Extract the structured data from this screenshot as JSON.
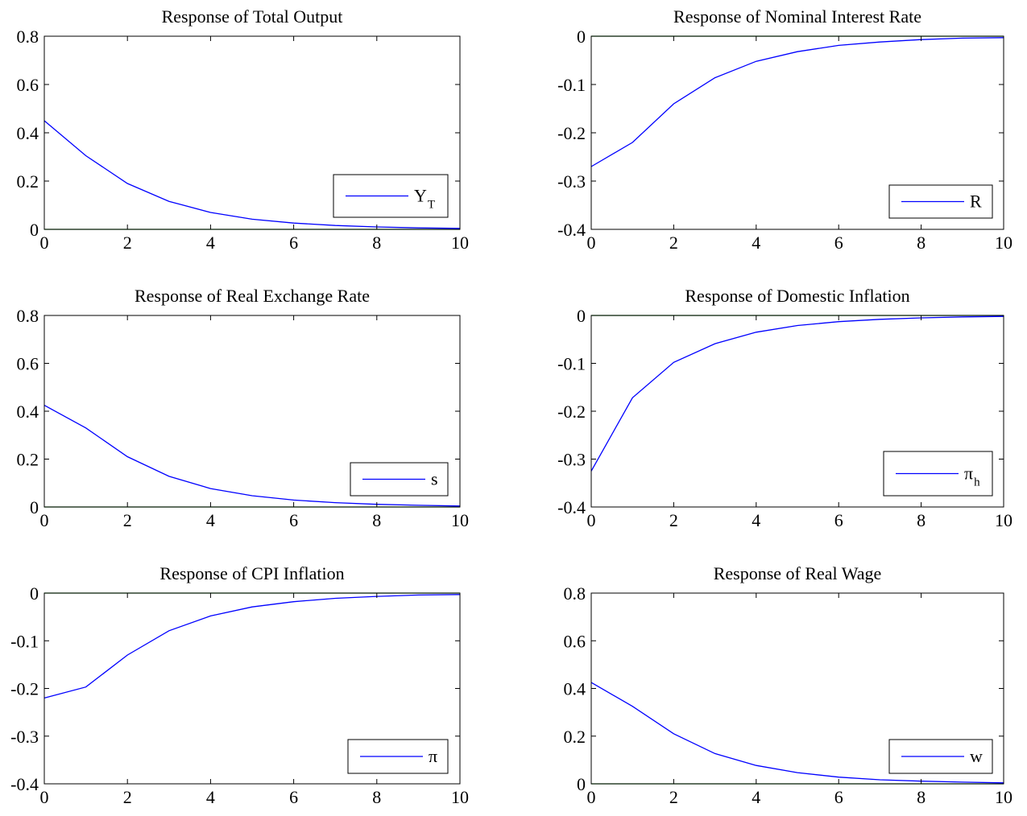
{
  "colors": {
    "series": "#0000ff",
    "zero_line": "#007f00",
    "axes": "#000000",
    "background": "#ffffff"
  },
  "chart_data": [
    {
      "type": "line",
      "title": "Response of Total Output",
      "x": [
        0,
        1,
        2,
        3,
        4,
        5,
        6,
        7,
        8,
        9,
        10
      ],
      "xlim": [
        0,
        10
      ],
      "ylim": [
        0,
        0.8
      ],
      "xticks": [
        0,
        2,
        4,
        6,
        8,
        10
      ],
      "xtick_labels": [
        "0",
        "2",
        "4",
        "6",
        "8",
        "10"
      ],
      "yticks": [
        0,
        0.2,
        0.4,
        0.6,
        0.8
      ],
      "ytick_labels": [
        "0",
        "0.2",
        "0.4",
        "0.6",
        "0.8"
      ],
      "zero_line": true,
      "grid": false,
      "legend_position": "bottom-right",
      "series": [
        {
          "name": "Y",
          "name_subscript": "T",
          "values": [
            0.45,
            0.305,
            0.19,
            0.116,
            0.07,
            0.042,
            0.026,
            0.016,
            0.01,
            0.006,
            0.004
          ]
        }
      ]
    },
    {
      "type": "line",
      "title": "Response of Nominal Interest Rate",
      "x": [
        0,
        1,
        2,
        3,
        4,
        5,
        6,
        7,
        8,
        9,
        10
      ],
      "xlim": [
        0,
        10
      ],
      "ylim": [
        -0.4,
        0
      ],
      "xticks": [
        0,
        2,
        4,
        6,
        8,
        10
      ],
      "xtick_labels": [
        "0",
        "2",
        "4",
        "6",
        "8",
        "10"
      ],
      "yticks": [
        -0.4,
        -0.3,
        -0.2,
        -0.1,
        0
      ],
      "ytick_labels": [
        "-0.4",
        "-0.3",
        "-0.2",
        "-0.1",
        "0"
      ],
      "zero_line": true,
      "grid": false,
      "legend_position": "bottom-right",
      "series": [
        {
          "name": "R",
          "name_subscript": "",
          "values": [
            -0.27,
            -0.22,
            -0.14,
            -0.086,
            -0.052,
            -0.032,
            -0.019,
            -0.012,
            -0.007,
            -0.004,
            -0.003
          ]
        }
      ]
    },
    {
      "type": "line",
      "title": "Response of Real Exchange Rate",
      "x": [
        0,
        1,
        2,
        3,
        4,
        5,
        6,
        7,
        8,
        9,
        10
      ],
      "xlim": [
        0,
        10
      ],
      "ylim": [
        0,
        0.8
      ],
      "xticks": [
        0,
        2,
        4,
        6,
        8,
        10
      ],
      "xtick_labels": [
        "0",
        "2",
        "4",
        "6",
        "8",
        "10"
      ],
      "yticks": [
        0,
        0.2,
        0.4,
        0.6,
        0.8
      ],
      "ytick_labels": [
        "0",
        "0.2",
        "0.4",
        "0.6",
        "0.8"
      ],
      "zero_line": true,
      "grid": false,
      "legend_position": "bottom-right",
      "series": [
        {
          "name": "s",
          "name_subscript": "",
          "values": [
            0.425,
            0.33,
            0.21,
            0.128,
            0.077,
            0.047,
            0.029,
            0.018,
            0.011,
            0.007,
            0.004
          ]
        }
      ]
    },
    {
      "type": "line",
      "title": "Response of Domestic Inflation",
      "x": [
        0,
        1,
        2,
        3,
        4,
        5,
        6,
        7,
        8,
        9,
        10
      ],
      "xlim": [
        0,
        10
      ],
      "ylim": [
        -0.4,
        0
      ],
      "xticks": [
        0,
        2,
        4,
        6,
        8,
        10
      ],
      "xtick_labels": [
        "0",
        "2",
        "4",
        "6",
        "8",
        "10"
      ],
      "yticks": [
        -0.4,
        -0.3,
        -0.2,
        -0.1,
        0
      ],
      "ytick_labels": [
        "-0.4",
        "-0.3",
        "-0.2",
        "-0.1",
        "0"
      ],
      "zero_line": true,
      "grid": false,
      "legend_position": "bottom-right",
      "series": [
        {
          "name": "π",
          "name_subscript": "h",
          "values": [
            -0.325,
            -0.172,
            -0.098,
            -0.059,
            -0.035,
            -0.021,
            -0.013,
            -0.008,
            -0.005,
            -0.003,
            -0.002
          ]
        }
      ]
    },
    {
      "type": "line",
      "title": "Response of CPI Inflation",
      "x": [
        0,
        1,
        2,
        3,
        4,
        5,
        6,
        7,
        8,
        9,
        10
      ],
      "xlim": [
        0,
        10
      ],
      "ylim": [
        -0.4,
        0
      ],
      "xticks": [
        0,
        2,
        4,
        6,
        8,
        10
      ],
      "xtick_labels": [
        "0",
        "2",
        "4",
        "6",
        "8",
        "10"
      ],
      "yticks": [
        -0.4,
        -0.3,
        -0.2,
        -0.1,
        0
      ],
      "ytick_labels": [
        "-0.4",
        "-0.3",
        "-0.2",
        "-0.1",
        "0"
      ],
      "zero_line": true,
      "grid": false,
      "legend_position": "bottom-right",
      "series": [
        {
          "name": "π",
          "name_subscript": "",
          "values": [
            -0.22,
            -0.197,
            -0.13,
            -0.079,
            -0.048,
            -0.029,
            -0.018,
            -0.011,
            -0.007,
            -0.004,
            -0.003
          ]
        }
      ]
    },
    {
      "type": "line",
      "title": "Response of Real Wage",
      "x": [
        0,
        1,
        2,
        3,
        4,
        5,
        6,
        7,
        8,
        9,
        10
      ],
      "xlim": [
        0,
        10
      ],
      "ylim": [
        0,
        0.8
      ],
      "xticks": [
        0,
        2,
        4,
        6,
        8,
        10
      ],
      "xtick_labels": [
        "0",
        "2",
        "4",
        "6",
        "8",
        "10"
      ],
      "yticks": [
        0,
        0.2,
        0.4,
        0.6,
        0.8
      ],
      "ytick_labels": [
        "0",
        "0.2",
        "0.4",
        "0.6",
        "0.8"
      ],
      "zero_line": true,
      "grid": false,
      "legend_position": "bottom-right",
      "series": [
        {
          "name": "w",
          "name_subscript": "",
          "values": [
            0.425,
            0.325,
            0.21,
            0.127,
            0.077,
            0.047,
            0.028,
            0.017,
            0.011,
            0.007,
            0.004
          ]
        }
      ]
    }
  ]
}
